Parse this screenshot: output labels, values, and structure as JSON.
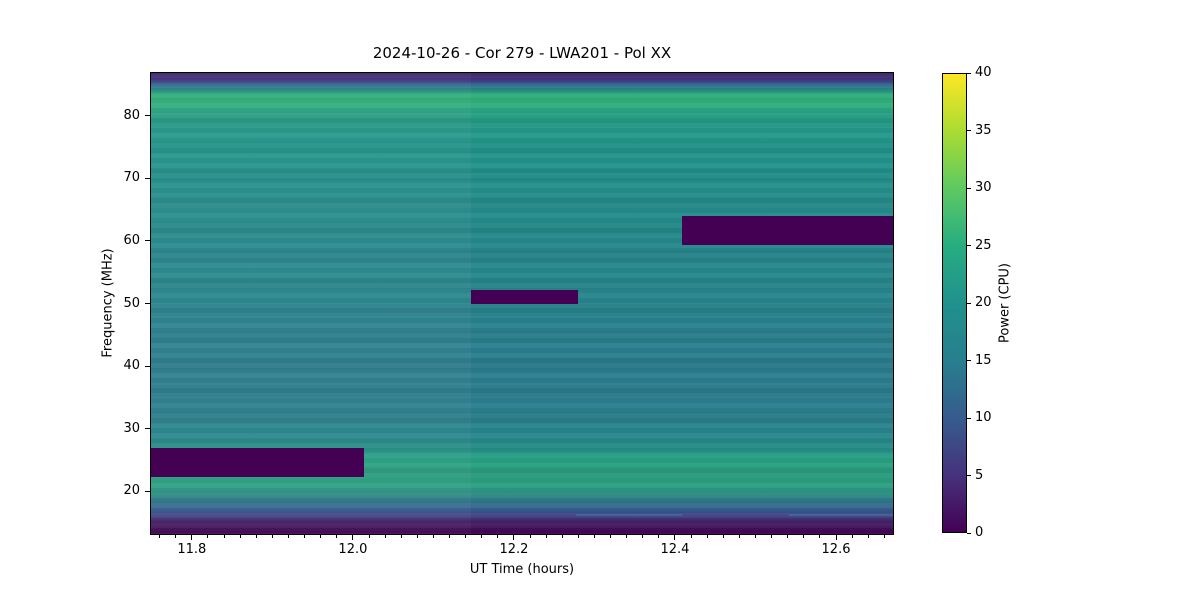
{
  "chart_data": {
    "type": "heatmap",
    "title": "2024-10-26 - Cor 279 - LWA201 - Pol XX",
    "xlabel": "UT Time (hours)",
    "ylabel": "Frequency (MHz)",
    "colorbar_label": "Power (CPU)",
    "colormap": "viridis",
    "x_range_hours": [
      11.748,
      12.672
    ],
    "x_ticks": [
      11.8,
      12.0,
      12.2,
      12.4,
      12.6
    ],
    "x_minor_tick_step": 0.02,
    "y_range_mhz": [
      13.0,
      87.0
    ],
    "y_ticks": [
      20,
      30,
      40,
      50,
      60,
      70,
      80
    ],
    "color_range": [
      0,
      40
    ],
    "colorbar_ticks": [
      0,
      5,
      10,
      15,
      20,
      25,
      30,
      35,
      40
    ],
    "viridis_anchors": [
      "#440154",
      "#46327e",
      "#365c8d",
      "#277f8e",
      "#21918c",
      "#27ad81",
      "#5ec962",
      "#aadc32",
      "#fde725"
    ],
    "grid": false,
    "spectrum_profile": [
      {
        "freq": 87.0,
        "power": 3.0,
        "color": "#38205f"
      },
      {
        "freq": 86.0,
        "power": 5.5,
        "color": "#433181"
      },
      {
        "freq": 85.0,
        "power": 12.0,
        "color": "#2e6a8e"
      },
      {
        "freq": 84.2,
        "power": 19.0,
        "color": "#27968a"
      },
      {
        "freq": 83.5,
        "power": 26.0,
        "color": "#30b37c"
      },
      {
        "freq": 82.0,
        "power": 25.0,
        "color": "#2fae7d"
      },
      {
        "freq": 80.5,
        "power": 22.5,
        "color": "#27a184"
      },
      {
        "freq": 78.5,
        "power": 21.0,
        "color": "#239a89"
      },
      {
        "freq": 75.0,
        "power": 20.0,
        "color": "#21958b"
      },
      {
        "freq": 70.0,
        "power": 19.5,
        "color": "#23908a"
      },
      {
        "freq": 66.0,
        "power": 18.5,
        "color": "#258c8b"
      },
      {
        "freq": 62.0,
        "power": 18.5,
        "color": "#248b8b"
      },
      {
        "freq": 58.0,
        "power": 17.5,
        "color": "#26868c"
      },
      {
        "freq": 54.0,
        "power": 18.0,
        "color": "#26888b"
      },
      {
        "freq": 50.0,
        "power": 17.0,
        "color": "#27848d"
      },
      {
        "freq": 46.0,
        "power": 16.5,
        "color": "#29808e"
      },
      {
        "freq": 40.0,
        "power": 16.0,
        "color": "#2a7d8e"
      },
      {
        "freq": 33.0,
        "power": 16.0,
        "color": "#2a7e8e"
      },
      {
        "freq": 29.0,
        "power": 17.3,
        "color": "#27858c"
      },
      {
        "freq": 26.5,
        "power": 19.3,
        "color": "#25938a"
      },
      {
        "freq": 25.0,
        "power": 22.5,
        "color": "#27a181"
      },
      {
        "freq": 21.0,
        "power": 22.0,
        "color": "#2b9f80"
      },
      {
        "freq": 19.5,
        "power": 19.8,
        "color": "#2b9385"
      },
      {
        "freq": 18.3,
        "power": 15.5,
        "color": "#2f7b8d"
      },
      {
        "freq": 17.0,
        "power": 11.0,
        "color": "#355f90"
      },
      {
        "freq": 16.0,
        "power": 7.0,
        "color": "#3f4383"
      },
      {
        "freq": 15.0,
        "power": 3.5,
        "color": "#45226b"
      },
      {
        "freq": 13.8,
        "power": 1.0,
        "color": "#440c59"
      },
      {
        "freq": 13.0,
        "power": 0.0,
        "color": "#440154"
      }
    ],
    "flagged_regions": [
      {
        "name": "flagged-region-low-band",
        "t_start": 11.748,
        "t_end": 12.012,
        "f_low": 22.5,
        "f_high": 27.1,
        "power": 0,
        "color": "#440154"
      },
      {
        "name": "flagged-region-mid-band",
        "t_start": 12.145,
        "t_end": 12.278,
        "f_low": 50.1,
        "f_high": 52.4,
        "power": 0,
        "color": "#440154"
      },
      {
        "name": "flagged-region-high-band",
        "t_start": 12.408,
        "t_end": 12.672,
        "f_low": 59.5,
        "f_high": 64.1,
        "power": 0,
        "color": "#440154"
      }
    ],
    "faint_streaks": [
      {
        "t_start": 12.276,
        "t_end": 12.408,
        "freq_mhz": 16.6,
        "color": "#3d6b9d"
      },
      {
        "t_start": 12.54,
        "t_end": 12.672,
        "freq_mhz": 16.6,
        "color": "#3d6b9d"
      }
    ],
    "segment_boundary_hours": 12.145
  }
}
